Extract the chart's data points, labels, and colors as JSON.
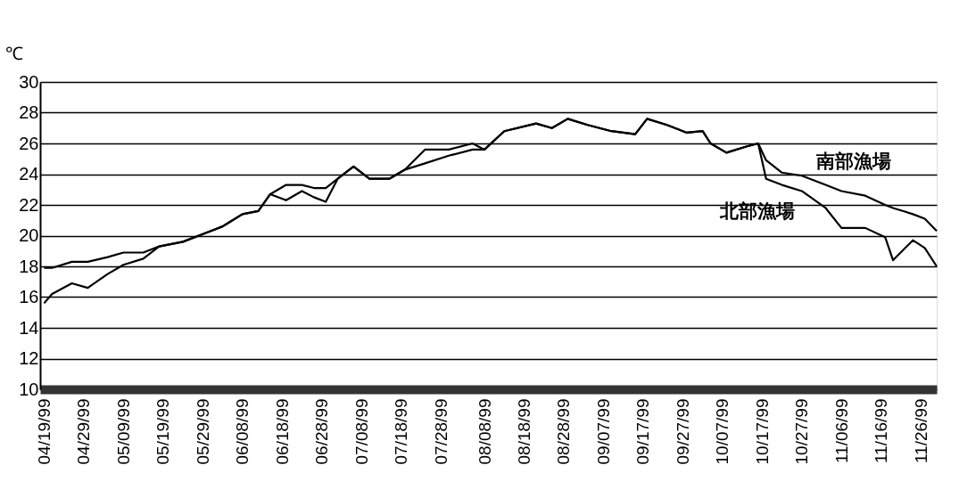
{
  "chart_data": {
    "type": "line",
    "ylabel": "℃",
    "x": [
      "1999-04-19",
      "1999-04-21",
      "1999-04-26",
      "1999-04-30",
      "1999-05-05",
      "1999-05-09",
      "1999-05-14",
      "1999-05-18",
      "1999-05-24",
      "1999-05-28",
      "1999-06-03",
      "1999-06-08",
      "1999-06-12",
      "1999-06-15",
      "1999-06-19",
      "1999-06-23",
      "1999-06-26",
      "1999-06-29",
      "1999-07-02",
      "1999-07-06",
      "1999-07-10",
      "1999-07-15",
      "1999-07-19",
      "1999-07-24",
      "1999-07-30",
      "1999-08-05",
      "1999-08-08",
      "1999-08-13",
      "1999-08-21",
      "1999-08-25",
      "1999-08-29",
      "1999-09-03",
      "1999-09-09",
      "1999-09-15",
      "1999-09-18",
      "1999-09-23",
      "1999-09-28",
      "1999-10-02",
      "1999-10-04",
      "1999-10-08",
      "1999-10-13",
      "1999-10-16",
      "1999-10-18",
      "1999-10-22",
      "1999-10-27",
      "1999-11-02",
      "1999-11-06",
      "1999-11-12",
      "1999-11-17",
      "1999-11-19",
      "1999-11-24",
      "1999-11-27",
      "1999-11-30"
    ],
    "series": [
      {
        "name": "南部漁場",
        "color": "#000000",
        "values": [
          17.9,
          17.9,
          18.3,
          18.3,
          18.6,
          18.9,
          18.9,
          19.3,
          19.6,
          20.0,
          20.6,
          21.4,
          21.6,
          22.7,
          23.3,
          23.3,
          23.1,
          23.1,
          23.7,
          24.5,
          23.7,
          23.7,
          24.3,
          25.6,
          25.6,
          26.0,
          25.6,
          26.8,
          27.3,
          27.0,
          27.6,
          27.2,
          26.8,
          26.6,
          27.6,
          27.2,
          26.7,
          26.8,
          26.0,
          25.4,
          25.8,
          26.0,
          24.9,
          24.1,
          23.9,
          23.3,
          22.9,
          22.6,
          22.0,
          21.8,
          21.4,
          21.1,
          20.3
        ]
      },
      {
        "name": "北部漁場",
        "color": "#000000",
        "values": [
          15.6,
          16.2,
          16.9,
          16.6,
          17.5,
          18.1,
          18.5,
          19.3,
          19.6,
          20.0,
          20.6,
          21.4,
          21.6,
          22.7,
          22.3,
          22.9,
          22.5,
          22.2,
          23.7,
          24.5,
          23.7,
          23.7,
          24.3,
          24.7,
          25.2,
          25.6,
          25.6,
          26.8,
          27.3,
          27.0,
          27.6,
          27.2,
          26.8,
          26.6,
          27.6,
          27.2,
          26.7,
          26.8,
          26.0,
          25.4,
          25.8,
          26.0,
          23.7,
          23.3,
          22.9,
          21.8,
          20.5,
          20.5,
          19.9,
          18.4,
          19.7,
          19.2,
          18.0
        ]
      }
    ],
    "xlim": [
      "1999-04-18",
      "1999-11-30"
    ],
    "xticks": [
      {
        "value": "1999-04-19",
        "label": "04/19/99"
      },
      {
        "value": "1999-04-29",
        "label": "04/29/99"
      },
      {
        "value": "1999-05-09",
        "label": "05/09/99"
      },
      {
        "value": "1999-05-19",
        "label": "05/19/99"
      },
      {
        "value": "1999-05-29",
        "label": "05/29/99"
      },
      {
        "value": "1999-06-08",
        "label": "06/08/99"
      },
      {
        "value": "1999-06-18",
        "label": "06/18/99"
      },
      {
        "value": "1999-06-28",
        "label": "06/28/99"
      },
      {
        "value": "1999-07-08",
        "label": "07/08/99"
      },
      {
        "value": "1999-07-18",
        "label": "07/18/99"
      },
      {
        "value": "1999-07-28",
        "label": "07/28/99"
      },
      {
        "value": "1999-08-08",
        "label": "08/08/99"
      },
      {
        "value": "1999-08-18",
        "label": "08/18/99"
      },
      {
        "value": "1999-08-28",
        "label": "08/28/99"
      },
      {
        "value": "1999-09-07",
        "label": "09/07/99"
      },
      {
        "value": "1999-09-17",
        "label": "09/17/99"
      },
      {
        "value": "1999-09-27",
        "label": "09/27/99"
      },
      {
        "value": "1999-10-07",
        "label": "10/07/99"
      },
      {
        "value": "1999-10-17",
        "label": "10/17/99"
      },
      {
        "value": "1999-10-27",
        "label": "10/27/99"
      },
      {
        "value": "1999-11-06",
        "label": "11/06/99"
      },
      {
        "value": "1999-11-16",
        "label": "11/16/99"
      },
      {
        "value": "1999-11-26",
        "label": "11/26/99"
      }
    ],
    "ylim": [
      10,
      30
    ],
    "yticks": [
      10,
      12,
      14,
      16,
      18,
      20,
      22,
      24,
      26,
      28,
      30
    ],
    "grid": "y",
    "legend": false,
    "marker": "none",
    "line_style": "solid"
  }
}
